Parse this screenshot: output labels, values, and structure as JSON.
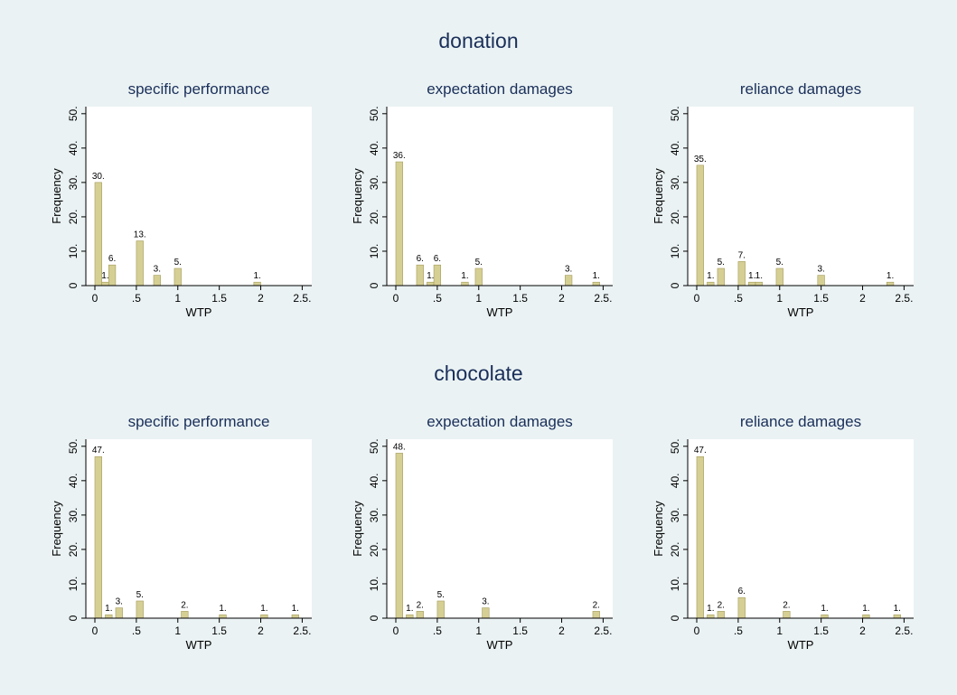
{
  "groups": [
    {
      "title": "donation",
      "panels": [
        {
          "title": "specific performance",
          "xlabel": "WTP",
          "ylabel": "Frequency",
          "x": [
            0.0416,
            0.125,
            0.208,
            0.542,
            0.75,
            1.0,
            1.958
          ],
          "values": [
            30,
            1,
            6,
            13,
            3,
            5,
            1
          ],
          "bar_labels": [
            "30.",
            "1.",
            "6.",
            "13.",
            "3.",
            "5.",
            "1."
          ]
        },
        {
          "title": "expectation damages",
          "xlabel": "WTP",
          "ylabel": "Frequency",
          "x": [
            0.0416,
            0.292,
            0.417,
            0.5,
            0.833,
            1.0,
            2.083,
            2.417
          ],
          "values": [
            36,
            6,
            1,
            6,
            1,
            5,
            3,
            1
          ],
          "bar_labels": [
            "36.",
            "6.",
            "1.",
            "6.",
            "1.",
            "5.",
            "3.",
            "1."
          ]
        },
        {
          "title": "reliance damages",
          "xlabel": "WTP",
          "ylabel": "Frequency",
          "x": [
            0.0416,
            0.167,
            0.292,
            0.542,
            0.667,
            0.75,
            1.0,
            1.5,
            2.333
          ],
          "values": [
            35,
            1,
            5,
            7,
            1,
            1,
            5,
            3,
            1
          ],
          "bar_labels": [
            "35.",
            "1.",
            "5.",
            "7.",
            "1.",
            "1.",
            "5.",
            "3.",
            "1."
          ]
        }
      ]
    },
    {
      "title": "chocolate",
      "panels": [
        {
          "title": "specific performance",
          "xlabel": "WTP",
          "ylabel": "Frequency",
          "x": [
            0.0416,
            0.167,
            0.292,
            0.542,
            1.083,
            1.542,
            2.042,
            2.417
          ],
          "values": [
            47,
            1,
            3,
            5,
            2,
            1,
            1,
            1
          ],
          "bar_labels": [
            "47.",
            "1.",
            "3.",
            "5.",
            "2.",
            "1.",
            "1.",
            "1."
          ]
        },
        {
          "title": "expectation damages",
          "xlabel": "WTP",
          "ylabel": "Frequency",
          "x": [
            0.0416,
            0.167,
            0.292,
            0.542,
            1.083,
            2.417
          ],
          "values": [
            48,
            1,
            2,
            5,
            3,
            2
          ],
          "bar_labels": [
            "48.",
            "1.",
            "2.",
            "5.",
            "3.",
            "2."
          ]
        },
        {
          "title": "reliance damages",
          "xlabel": "WTP",
          "ylabel": "Frequency",
          "x": [
            0.0416,
            0.167,
            0.292,
            0.542,
            1.083,
            1.542,
            2.042,
            2.417
          ],
          "values": [
            47,
            1,
            2,
            6,
            2,
            1,
            1,
            1
          ],
          "bar_labels": [
            "47.",
            "1.",
            "2.",
            "6.",
            "2.",
            "1.",
            "1.",
            "1."
          ]
        }
      ]
    }
  ],
  "chart_data": {
    "type": "bar",
    "xlim": [
      0,
      2.5
    ],
    "ylim": [
      0,
      50
    ],
    "xticks": [
      0,
      0.5,
      1,
      1.5,
      2,
      2.5
    ],
    "xtick_labels": [
      "0",
      ".5",
      "1",
      "1.5",
      "2",
      "2.5."
    ],
    "yticks": [
      0,
      10,
      20,
      30,
      40,
      50
    ],
    "ytick_labels": [
      "0",
      "10.",
      "20.",
      "30.",
      "40.",
      "50."
    ],
    "bar_width": 0.0833,
    "grid": false,
    "colors": {
      "bar_fill": "#d6cf94",
      "bar_stroke": "#a39c5c",
      "plot_bg": "#ffffff",
      "axis": "#000000",
      "title": "#1a2f5a",
      "background": "#eaf2f3"
    }
  }
}
